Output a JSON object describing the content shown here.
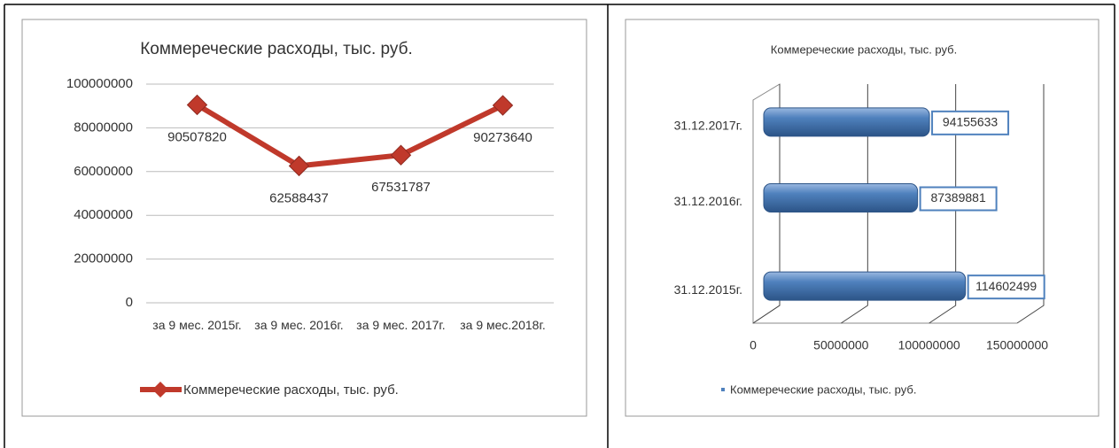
{
  "chart_data": [
    {
      "type": "line",
      "title": "Коммеречеcкие расходы, тыс. руб.",
      "categories": [
        "за 9 мес. 2015г.",
        "за 9 мес. 2016г.",
        "за 9 мес. 2017г.",
        "за 9 мес.2018г."
      ],
      "series": [
        {
          "name": "Коммеречеcкие расходы, тыс. руб.",
          "color": "#c0392b",
          "values": [
            90507820,
            62588437,
            67531787,
            90273640
          ]
        }
      ],
      "ylim": [
        0,
        100000000
      ],
      "yticks": [
        0,
        20000000,
        40000000,
        60000000,
        80000000,
        100000000
      ],
      "grid": true,
      "legend": "bottom"
    },
    {
      "type": "bar",
      "orientation": "horizontal",
      "title": "Коммеречеcкие расходы, тыс. руб.",
      "categories": [
        "31.12.2015г.",
        "31.12.2016г.",
        "31.12.2017г."
      ],
      "series": [
        {
          "name": "Коммеречеcкие расходы, тыс. руб.",
          "color": "#4f81bd",
          "values": [
            114602499,
            87389881,
            94155633
          ]
        }
      ],
      "xlim": [
        0,
        150000000
      ],
      "xticks": [
        0,
        50000000,
        100000000,
        150000000
      ],
      "grid": true,
      "legend": "bottom"
    }
  ]
}
